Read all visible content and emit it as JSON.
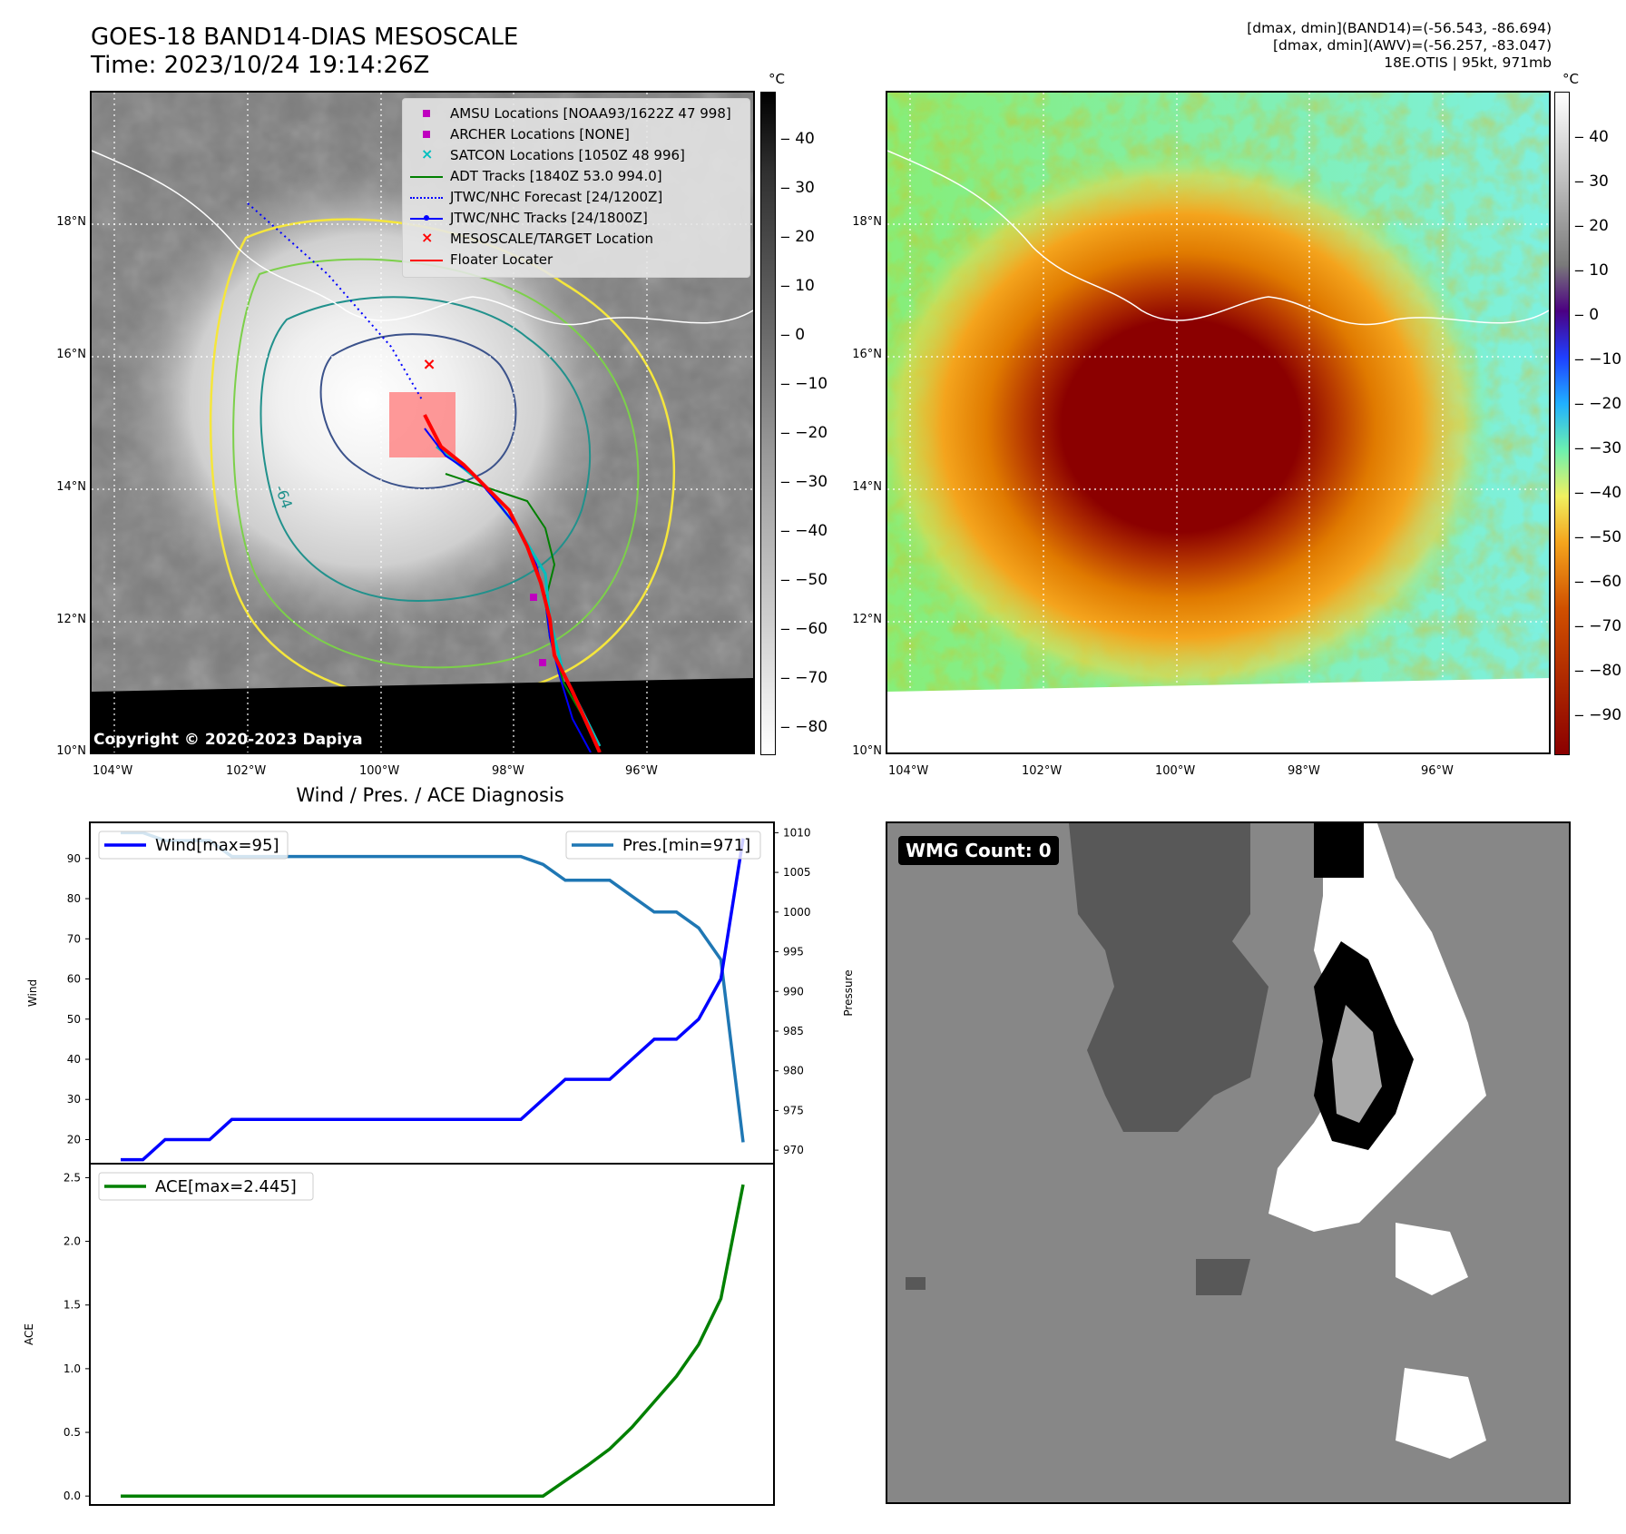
{
  "header": {
    "title": "GOES-18 BAND14-DIAS MESOSCALE",
    "time": "Time: 2023/10/24 19:14:26Z",
    "info_line1": "[dmax, dmin](BAND14)=(-56.543, -86.694)",
    "info_line2": "[dmax, dmin](AWV)=(-56.257, -83.047)",
    "info_line3": "18E.OTIS | 95kt, 971mb"
  },
  "ir_map": {
    "colorbar_unit": "°C",
    "colorbar_ticks": [
      "40",
      "30",
      "20",
      "10",
      "0",
      "−10",
      "−20",
      "−30",
      "−40",
      "−50",
      "−60",
      "−70",
      "−80"
    ],
    "lat_labels": [
      "18°N",
      "16°N",
      "14°N",
      "12°N",
      "10°N"
    ],
    "lon_labels": [
      "104°W",
      "102°W",
      "100°W",
      "98°W",
      "96°W"
    ],
    "contour_label": "-64",
    "copyright": "Copyright © 2020-2023 Dapiya",
    "legend": [
      {
        "label": "AMSU Locations [NOAA93/1622Z 47 998]",
        "color": "#bf00bf"
      },
      {
        "label": "ARCHER Locations [NONE]",
        "color": "#bf00bf"
      },
      {
        "label": "SATCON Locations [1050Z 48 996]",
        "color": "#00bfbf"
      },
      {
        "label": "ADT Tracks [1840Z 53.0 994.0]",
        "color": "#008000"
      },
      {
        "label": "JTWC/NHC Forecast [24/1200Z]",
        "color": "#0000ff"
      },
      {
        "label": "JTWC/NHC Tracks [24/1800Z]",
        "color": "#0000ff"
      },
      {
        "label": "MESOSCALE/TARGET Location",
        "color": "#ff0000"
      },
      {
        "label": "Floater Locater",
        "color": "#ff0000"
      }
    ]
  },
  "color_map": {
    "colorbar_unit": "°C",
    "colorbar_ticks": [
      "40",
      "30",
      "20",
      "10",
      "0",
      "−10",
      "−20",
      "−30",
      "−40",
      "−50",
      "−60",
      "−70",
      "−80",
      "−90"
    ],
    "lat_labels": [
      "18°N",
      "16°N",
      "14°N",
      "12°N",
      "10°N"
    ],
    "lon_labels": [
      "104°W",
      "102°W",
      "100°W",
      "98°W",
      "96°W"
    ]
  },
  "wmg": {
    "badge": "WMG Count: 0"
  },
  "colors": {
    "wind": "#0000ff",
    "pressure": "#1f77b4",
    "ace": "#008000",
    "target": "#ff0000"
  },
  "chart_data": [
    {
      "type": "line",
      "title": "Wind / Pres. / ACE Diagnosis",
      "ylabel": "Wind",
      "ylabel_right": "Pressure",
      "ylim": [
        14,
        99
      ],
      "ylim_right": [
        968.3,
        1011.3
      ],
      "yticks": [
        20,
        30,
        40,
        50,
        60,
        70,
        80,
        90
      ],
      "yticks_right": [
        970,
        975,
        980,
        985,
        990,
        995,
        1000,
        1005,
        1010
      ],
      "series": [
        {
          "name": "Wind[max=95]",
          "axis": "left",
          "values": [
            15,
            15,
            20,
            20,
            20,
            25,
            25,
            25,
            25,
            25,
            25,
            25,
            25,
            25,
            25,
            25,
            25,
            25,
            25,
            30,
            35,
            35,
            35,
            40,
            45,
            45,
            50,
            60,
            95
          ]
        },
        {
          "name": "Pres.[min=971]",
          "axis": "right",
          "values": [
            1010,
            1010,
            1009,
            1009,
            1009,
            1007,
            1007,
            1007,
            1007,
            1007,
            1007,
            1007,
            1007,
            1007,
            1007,
            1007,
            1007,
            1007,
            1007,
            1006,
            1004,
            1004,
            1004,
            1002,
            1000,
            1000,
            998,
            994,
            971
          ]
        }
      ]
    },
    {
      "type": "line",
      "ylabel": "ACE",
      "ylim": [
        -0.07,
        2.61
      ],
      "yticks": [
        0.0,
        0.5,
        1.0,
        1.5,
        2.0,
        2.5
      ],
      "series": [
        {
          "name": "ACE[max=2.445]",
          "values": [
            0,
            0,
            0,
            0,
            0,
            0,
            0,
            0,
            0,
            0,
            0,
            0,
            0,
            0,
            0,
            0,
            0,
            0,
            0,
            0,
            0.12,
            0.24,
            0.37,
            0.54,
            0.74,
            0.94,
            1.19,
            1.55,
            2.445
          ]
        }
      ]
    }
  ]
}
